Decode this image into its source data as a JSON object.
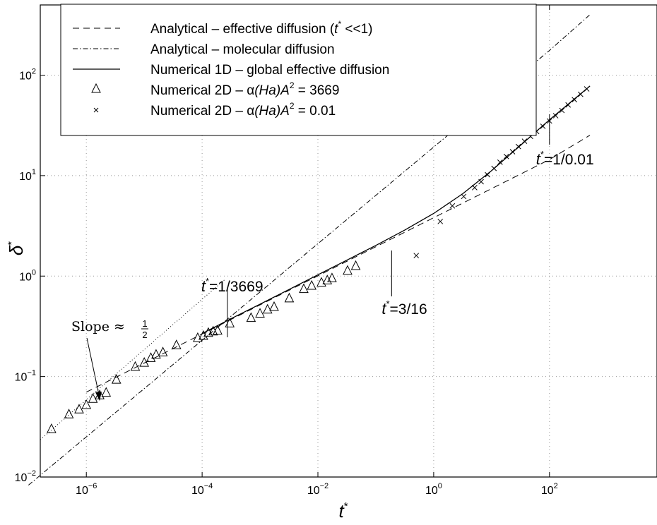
{
  "chart_data": {
    "type": "scatter",
    "xscale": "log",
    "yscale": "log",
    "xlim": [
      1.6e-07,
      7200
    ],
    "ylim": [
      0.01,
      500
    ],
    "xlabel": "t*",
    "ylabel": "δ*",
    "grid": true,
    "legend_position": "top-left",
    "x_ticks": [
      {
        "value": 1e-06,
        "base": "10",
        "exp": "−6"
      },
      {
        "value": 0.0001,
        "base": "10",
        "exp": "−4"
      },
      {
        "value": 0.01,
        "base": "10",
        "exp": "−2"
      },
      {
        "value": 1,
        "base": "10",
        "exp": "0"
      },
      {
        "value": 100,
        "base": "10",
        "exp": "2"
      }
    ],
    "y_ticks": [
      {
        "value": 0.01,
        "base": "10",
        "exp": "−2"
      },
      {
        "value": 0.1,
        "base": "10",
        "exp": "−1"
      },
      {
        "value": 1,
        "base": "10",
        "exp": "0"
      },
      {
        "value": 10,
        "base": "10",
        "exp": "1"
      },
      {
        "value": 100,
        "base": "10",
        "exp": "2"
      }
    ],
    "series": [
      {
        "name": "Analytical – effective diffusion (t* <<1)",
        "style": "dashed",
        "x": [
          1e-06,
          1e-05,
          0.0001,
          0.001,
          0.01,
          0.1,
          1,
          10,
          100,
          500
        ],
        "y": [
          0.07,
          0.1362,
          0.2653,
          0.5165,
          1.006,
          1.958,
          3.812,
          7.422,
          14.45,
          25.24
        ]
      },
      {
        "name": "Analytical – molecular diffusion",
        "style": "dashdot",
        "x": [
          1e-07,
          1e-06,
          1e-05,
          0.0001,
          0.001,
          0.01,
          0.1,
          1,
          10,
          100,
          500
        ],
        "y": [
          0.0083,
          0.0251,
          0.0759,
          0.2296,
          0.6947,
          2.102,
          6.36,
          19.24,
          58.2,
          176.1,
          400
        ]
      },
      {
        "name": "Numerical 1D – global effective diffusion",
        "style": "solid",
        "x": [
          0.0001,
          0.000316,
          0.001,
          0.00316,
          0.01,
          0.0316,
          0.1,
          0.316,
          1,
          3.16,
          10,
          31.6,
          100,
          500
        ],
        "y": [
          0.268,
          0.377,
          0.525,
          0.735,
          1.03,
          1.44,
          2.02,
          2.87,
          4.2,
          6.6,
          11.2,
          20,
          36,
          78
        ]
      },
      {
        "name": "Numerical 2D – α(Ha)A² = 3669",
        "marker": "triangle",
        "x": [
          2.5e-07,
          5e-07,
          7.5e-07,
          1e-06,
          1.3e-06,
          1.7e-06,
          2.2e-06,
          3.3e-06,
          7e-06,
          1e-05,
          1.3e-05,
          1.6e-05,
          2.1e-05,
          3.6e-05,
          8.4e-05,
          0.000105,
          0.000128,
          0.000155,
          0.000185,
          0.0003,
          0.0007,
          0.001,
          0.00135,
          0.00175,
          0.0032,
          0.0057,
          0.0078,
          0.0115,
          0.0145,
          0.0175,
          0.0325,
          0.045
        ],
        "y": [
          0.03,
          0.042,
          0.047,
          0.052,
          0.06,
          0.065,
          0.069,
          0.093,
          0.125,
          0.137,
          0.153,
          0.165,
          0.174,
          0.205,
          0.242,
          0.254,
          0.272,
          0.281,
          0.286,
          0.338,
          0.383,
          0.423,
          0.464,
          0.493,
          0.6,
          0.743,
          0.8,
          0.86,
          0.905,
          0.95,
          1.13,
          1.26
        ]
      },
      {
        "name": "Numerical 2D – α(Ha)A² = 0.01",
        "marker": "x",
        "x": [
          0.5,
          1.3,
          2.1,
          3.3,
          5.1,
          6.6,
          8.5,
          11,
          14,
          18,
          23,
          29,
          37,
          47,
          60,
          77,
          100,
          128,
          164,
          210,
          270,
          345,
          440
        ],
        "y": [
          1.6,
          3.5,
          5,
          6.2,
          7.6,
          8.7,
          10.2,
          11.8,
          13.6,
          15.5,
          17.3,
          19.5,
          22,
          24.6,
          27.5,
          31,
          35,
          39.5,
          44.5,
          50.5,
          57,
          64.5,
          73
        ]
      }
    ],
    "annotations": [
      {
        "value_x": 0.000273,
        "label_pre": "t",
        "label_sup": "*",
        "label_post": "=1/3669"
      },
      {
        "value_x": 0.1875,
        "label_pre": "t",
        "label_sup": "*",
        "label_post": "=3/16"
      },
      {
        "value_x": 100,
        "label_pre": "t",
        "label_sup": "*",
        "label_post": "=1/0.01"
      },
      {
        "label": "Slope ≈",
        "fraction_num": "1",
        "fraction_den": "2"
      }
    ],
    "legend": [
      {
        "pre": "Analytical – effective diffusion (",
        "it": "t",
        "sup": "*",
        "post": " <<1)"
      },
      {
        "pre": "Analytical – molecular diffusion"
      },
      {
        "pre": "Numerical 1D – global effective diffusion"
      },
      {
        "pre": "Numerical 2D – α",
        "it": "(Ha)A",
        "sup": "2",
        "post": " = 3669"
      },
      {
        "pre": "Numerical 2D – α",
        "it": "(Ha)A",
        "sup": "2",
        "post": " = 0.01"
      }
    ]
  }
}
